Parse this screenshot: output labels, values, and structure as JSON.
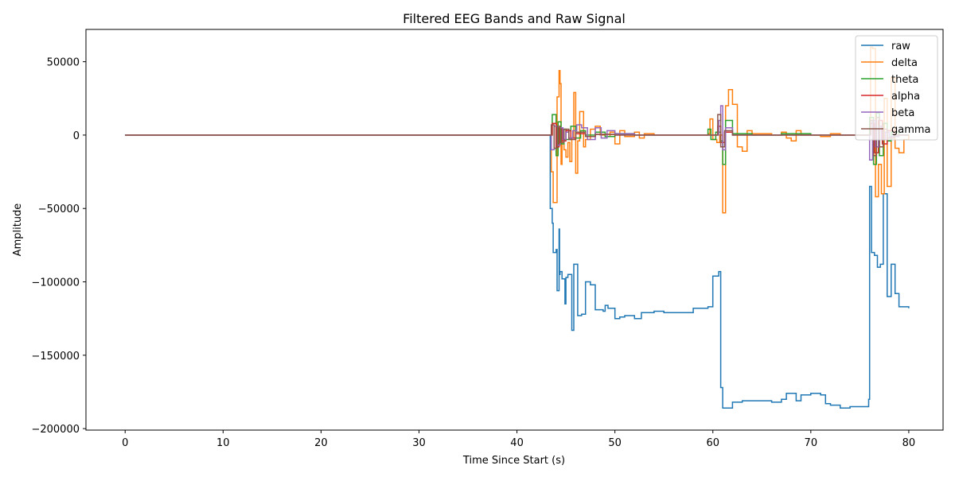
{
  "chart_data": {
    "type": "line",
    "title": "Filtered EEG Bands and Raw Signal",
    "xlabel": "Time Since Start (s)",
    "ylabel": "Amplitude",
    "xlim": [
      -4,
      83.5
    ],
    "ylim": [
      -201000,
      72000
    ],
    "xticks": [
      0,
      10,
      20,
      30,
      40,
      50,
      60,
      70,
      80
    ],
    "yticks": [
      -200000,
      -150000,
      -100000,
      -50000,
      0,
      50000
    ],
    "ytick_labels": [
      "−200000",
      "−150000",
      "−100000",
      "−50000",
      "0",
      "50000"
    ],
    "grid": false,
    "legend_position": "top-right",
    "series": [
      {
        "name": "raw",
        "color": "#1f77b4",
        "x": [
          0,
          43.3,
          43.4,
          43.6,
          43.7,
          44.0,
          44.1,
          44.3,
          44.35,
          44.4,
          44.6,
          44.9,
          45.0,
          45.2,
          45.6,
          45.8,
          46.2,
          46.6,
          47.0,
          47.5,
          48.0,
          48.8,
          49.0,
          49.3,
          50.0,
          50.5,
          51.0,
          52.0,
          52.7,
          54.0,
          55.0,
          56.0,
          57.0,
          58.0,
          59.0,
          59.5,
          60.0,
          60.6,
          60.8,
          61.0,
          62.0,
          63.0,
          64.0,
          65.0,
          66.0,
          67.0,
          67.5,
          68.0,
          68.5,
          69.0,
          70.0,
          71.0,
          71.5,
          72.0,
          73.0,
          74.0,
          75.0,
          75.8,
          75.9,
          76.0,
          76.2,
          76.5,
          76.8,
          77.1,
          77.4,
          77.8,
          78.2,
          78.6,
          79.0,
          79.5,
          80.0
        ],
        "values": [
          0,
          0,
          -50000,
          -60000,
          -80000,
          -78000,
          -106000,
          -64000,
          -95000,
          -93000,
          -98000,
          -115000,
          -97000,
          -95000,
          -133000,
          -88000,
          -123000,
          -122000,
          -100000,
          -102000,
          -119000,
          -120000,
          -116000,
          -118000,
          -125000,
          -124000,
          -123000,
          -125000,
          -121000,
          -120000,
          -121000,
          -121000,
          -121000,
          -118000,
          -118000,
          -117000,
          -96000,
          -93000,
          -172000,
          -186000,
          -182000,
          -181000,
          -181000,
          -181000,
          -182000,
          -180000,
          -176000,
          -176000,
          -181000,
          -177000,
          -176000,
          -177000,
          -183000,
          -184000,
          -186000,
          -185000,
          -185000,
          -185000,
          -180000,
          -35000,
          -80000,
          -82000,
          -90000,
          -88000,
          -40000,
          -110000,
          -88000,
          -108000,
          -117000,
          -117000,
          -118000
        ]
      },
      {
        "name": "delta",
        "color": "#ff7f0e",
        "x": [
          0,
          43.3,
          43.5,
          43.7,
          44.0,
          44.1,
          44.3,
          44.4,
          44.5,
          44.6,
          44.8,
          45.0,
          45.2,
          45.4,
          45.6,
          45.8,
          46.0,
          46.2,
          46.4,
          46.8,
          47.0,
          47.5,
          48.0,
          48.5,
          49.0,
          49.5,
          50.0,
          50.5,
          51.0,
          52.0,
          52.5,
          53.0,
          54.0,
          55.0,
          57.0,
          59.0,
          59.5,
          59.7,
          60.0,
          60.4,
          60.7,
          61.0,
          61.3,
          61.6,
          62.0,
          62.5,
          63.0,
          63.5,
          64.0,
          66.0,
          67.0,
          67.5,
          68.0,
          68.5,
          69.0,
          70.0,
          71.0,
          72.0,
          73.0,
          74.0,
          75.0,
          76.0,
          76.1,
          76.3,
          76.6,
          76.9,
          77.2,
          77.5,
          77.8,
          78.2,
          78.6,
          79.0,
          79.5,
          80.0
        ],
        "values": [
          0,
          0,
          -25000,
          -46000,
          -46000,
          26000,
          44000,
          35000,
          -20000,
          2000,
          -10000,
          -15000,
          -5000,
          -18000,
          -2000,
          29000,
          -26000,
          -4000,
          16000,
          -8000,
          -3000,
          4000,
          6000,
          0,
          -1000,
          2000,
          -6000,
          3000,
          -1000,
          2000,
          -2000,
          1000,
          0,
          0,
          0,
          0,
          1000,
          11000,
          -3000,
          -5000,
          0,
          -53000,
          20000,
          31000,
          21000,
          -8000,
          -11000,
          3000,
          1000,
          0,
          2000,
          -2000,
          -4000,
          3000,
          0,
          0,
          -1000,
          1000,
          0,
          0,
          0,
          5000,
          60000,
          59000,
          -42000,
          -20000,
          -40000,
          25000,
          -35000,
          39000,
          -9000,
          -12000,
          -3000,
          0
        ]
      },
      {
        "name": "theta",
        "color": "#2ca02c",
        "x": [
          0,
          43.3,
          43.6,
          44.0,
          44.2,
          44.5,
          44.8,
          45.0,
          45.5,
          46.0,
          46.5,
          47.0,
          48.0,
          49.0,
          50.0,
          52.0,
          55.0,
          58.0,
          59.5,
          59.8,
          60.3,
          60.8,
          61.0,
          61.3,
          62.0,
          64.0,
          67.0,
          70.0,
          73.0,
          75.5,
          76.0,
          76.4,
          76.7,
          77.0,
          77.4,
          77.8,
          78.2,
          79.0,
          80.0
        ],
        "values": [
          0,
          0,
          14000,
          -14000,
          9000,
          -6000,
          4000,
          -3000,
          6000,
          -2000,
          3000,
          0,
          2000,
          -1000,
          1000,
          0,
          0,
          0,
          4000,
          -3000,
          2000,
          -4000,
          -20000,
          10000,
          1000,
          0,
          1000,
          0,
          0,
          0,
          12000,
          -20000,
          15000,
          -14000,
          8000,
          -4000,
          2000,
          0,
          0
        ]
      },
      {
        "name": "alpha",
        "color": "#d62728",
        "x": [
          0,
          43.3,
          43.6,
          44.0,
          44.3,
          44.6,
          45.0,
          45.5,
          46.0,
          47.0,
          48.0,
          50.0,
          55.0,
          60.0,
          60.5,
          60.8,
          61.2,
          62.0,
          70.0,
          75.8,
          76.1,
          76.5,
          76.9,
          77.3,
          77.8,
          78.5,
          80.0
        ],
        "values": [
          0,
          0,
          8000,
          -8000,
          5000,
          -4000,
          3000,
          -2000,
          1000,
          -1000,
          500,
          0,
          0,
          0,
          6000,
          -5000,
          2000,
          0,
          0,
          0,
          8000,
          -12000,
          10000,
          -6000,
          3000,
          0,
          0
        ]
      },
      {
        "name": "beta",
        "color": "#9467bd",
        "x": [
          0,
          43.3,
          43.5,
          43.8,
          44.1,
          44.4,
          44.7,
          45.0,
          45.3,
          45.7,
          46.1,
          46.6,
          47.2,
          48.0,
          48.6,
          49.2,
          50.0,
          52.0,
          56.0,
          60.0,
          60.6,
          60.8,
          61.0,
          61.3,
          62.0,
          70.0,
          75.8,
          76.0,
          76.3,
          76.6,
          76.9,
          77.2,
          77.6,
          78.0,
          79.0,
          80.0
        ],
        "values": [
          0,
          0,
          -10000,
          6000,
          -7000,
          5000,
          -3000,
          2000,
          -2000,
          3000,
          7000,
          5000,
          -3000,
          5000,
          -2000,
          3000,
          1000,
          0,
          0,
          0,
          10000,
          20000,
          -10000,
          5000,
          0,
          0,
          0,
          -17000,
          10000,
          -8000,
          6000,
          -3000,
          2000,
          -1000,
          0,
          0
        ]
      },
      {
        "name": "gamma",
        "color": "#8c564b",
        "x": [
          0,
          43.3,
          43.5,
          43.8,
          44.1,
          44.4,
          44.8,
          45.3,
          46.0,
          47.0,
          48.0,
          50.0,
          55.0,
          60.0,
          60.5,
          60.8,
          61.2,
          62.0,
          70.0,
          75.8,
          76.1,
          76.4,
          76.7,
          77.0,
          77.4,
          77.8,
          78.5,
          80.0
        ],
        "values": [
          0,
          0,
          7000,
          -9000,
          6000,
          -5000,
          4000,
          -3000,
          2000,
          -1000,
          500,
          0,
          0,
          0,
          14000,
          -8000,
          3000,
          0,
          0,
          0,
          10000,
          -14000,
          12000,
          -8000,
          4000,
          -2000,
          0,
          0
        ]
      }
    ]
  }
}
